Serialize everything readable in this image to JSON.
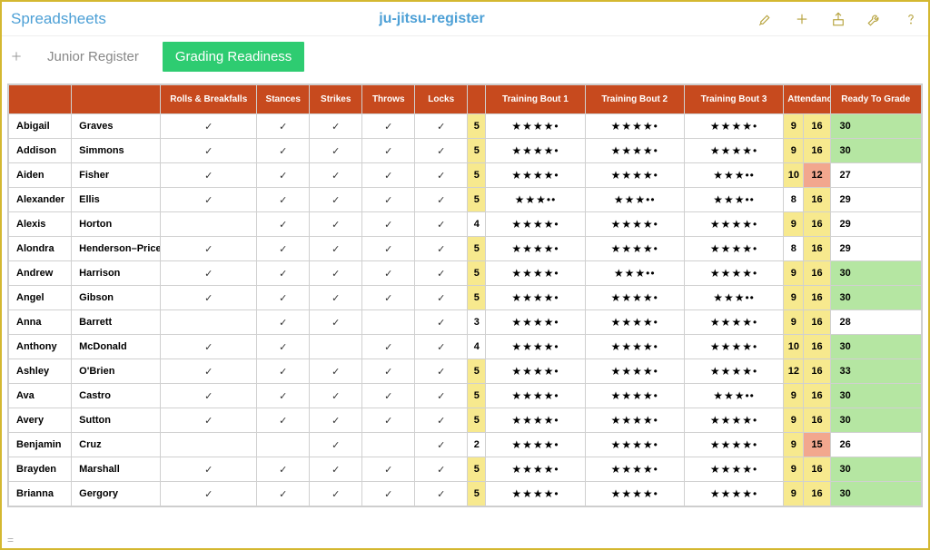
{
  "topbar": {
    "app_title": "Spreadsheets",
    "doc_title": "ju-jitsu-register"
  },
  "tabs": {
    "items": [
      {
        "label": "Junior Register",
        "active": false
      },
      {
        "label": "Grading Readiness",
        "active": true
      }
    ]
  },
  "table": {
    "headers": {
      "name1": "",
      "name2": "",
      "rolls": "Rolls & Breakfalls",
      "stances": "Stances",
      "strikes": "Strikes",
      "throws": "Throws",
      "locks": "Locks",
      "bout1": "Training Bout 1",
      "bout2": "Training Bout 2",
      "bout3": "Training Bout 3",
      "attendance": "Attendance",
      "ready": "Ready To Grade"
    },
    "colors": {
      "header_bg": "#c74a1e",
      "header_fg": "#ffffff",
      "num_bg": "#f7e98e",
      "att_good_bg": "#f7e98e",
      "att_bad_bg": "#f2a78e",
      "grade_good_bg": "#b5e6a2",
      "border": "#d0d0d0"
    },
    "rows": [
      {
        "first": "Abigail",
        "last": "Graves",
        "rolls": true,
        "stances": true,
        "strikes": true,
        "throws": true,
        "locks": true,
        "num": 5,
        "b1": 4,
        "b2": 4,
        "b3": 4,
        "a1": 9,
        "a2": 16,
        "grade": 30,
        "good": true
      },
      {
        "first": "Addison",
        "last": "Simmons",
        "rolls": true,
        "stances": true,
        "strikes": true,
        "throws": true,
        "locks": true,
        "num": 5,
        "b1": 4,
        "b2": 4,
        "b3": 4,
        "a1": 9,
        "a2": 16,
        "grade": 30,
        "good": true
      },
      {
        "first": "Aiden",
        "last": "Fisher",
        "rolls": true,
        "stances": true,
        "strikes": true,
        "throws": true,
        "locks": true,
        "num": 5,
        "b1": 4,
        "b2": 4,
        "b3": 3,
        "a1": 10,
        "a2": 12,
        "a2bad": true,
        "grade": 27,
        "good": false
      },
      {
        "first": "Alexander",
        "last": "Ellis",
        "rolls": true,
        "stances": true,
        "strikes": true,
        "throws": true,
        "locks": true,
        "num": 5,
        "b1": 3,
        "b2": 3,
        "b3": 3,
        "a1": 8,
        "a1dim": true,
        "a2": 16,
        "grade": 29,
        "good": false
      },
      {
        "first": "Alexis",
        "last": "Horton",
        "rolls": false,
        "stances": true,
        "strikes": true,
        "throws": true,
        "locks": true,
        "num": 4,
        "numdim": true,
        "b1": 4,
        "b2": 4,
        "b3": 4,
        "a1": 9,
        "a2": 16,
        "grade": 29,
        "good": false
      },
      {
        "first": "Alondra",
        "last": "Henderson–Price",
        "rolls": true,
        "stances": true,
        "strikes": true,
        "throws": true,
        "locks": true,
        "num": 5,
        "b1": 4,
        "b2": 4,
        "b3": 4,
        "a1": 8,
        "a1dim": true,
        "a2": 16,
        "grade": 29,
        "good": false
      },
      {
        "first": "Andrew",
        "last": "Harrison",
        "rolls": true,
        "stances": true,
        "strikes": true,
        "throws": true,
        "locks": true,
        "num": 5,
        "b1": 4,
        "b2": 3,
        "b3": 4,
        "a1": 9,
        "a2": 16,
        "grade": 30,
        "good": true
      },
      {
        "first": "Angel",
        "last": "Gibson",
        "rolls": true,
        "stances": true,
        "strikes": true,
        "throws": true,
        "locks": true,
        "num": 5,
        "b1": 4,
        "b2": 4,
        "b3": 3,
        "a1": 9,
        "a2": 16,
        "grade": 30,
        "good": true
      },
      {
        "first": "Anna",
        "last": "Barrett",
        "rolls": false,
        "stances": true,
        "strikes": true,
        "throws": false,
        "locks": true,
        "num": 3,
        "numdim": true,
        "b1": 4,
        "b2": 4,
        "b3": 4,
        "a1": 9,
        "a2": 16,
        "grade": 28,
        "good": false
      },
      {
        "first": "Anthony",
        "last": "McDonald",
        "rolls": true,
        "stances": true,
        "strikes": false,
        "throws": true,
        "locks": true,
        "num": 4,
        "numdim": true,
        "b1": 4,
        "b2": 4,
        "b3": 4,
        "a1": 10,
        "a2": 16,
        "grade": 30,
        "good": true
      },
      {
        "first": "Ashley",
        "last": "O'Brien",
        "rolls": true,
        "stances": true,
        "strikes": true,
        "throws": true,
        "locks": true,
        "num": 5,
        "b1": 4,
        "b2": 4,
        "b3": 4,
        "a1": 12,
        "a2": 16,
        "grade": 33,
        "good": true
      },
      {
        "first": "Ava",
        "last": "Castro",
        "rolls": true,
        "stances": true,
        "strikes": true,
        "throws": true,
        "locks": true,
        "num": 5,
        "b1": 4,
        "b2": 4,
        "b3": 3,
        "a1": 9,
        "a2": 16,
        "grade": 30,
        "good": true
      },
      {
        "first": "Avery",
        "last": "Sutton",
        "rolls": true,
        "stances": true,
        "strikes": true,
        "throws": true,
        "locks": true,
        "num": 5,
        "b1": 4,
        "b2": 4,
        "b3": 4,
        "a1": 9,
        "a2": 16,
        "grade": 30,
        "good": true
      },
      {
        "first": "Benjamin",
        "last": "Cruz",
        "rolls": false,
        "stances": false,
        "strikes": true,
        "throws": false,
        "locks": true,
        "num": 2,
        "numdim": true,
        "b1": 4,
        "b2": 4,
        "b3": 4,
        "a1": 9,
        "a2": 15,
        "a2bad": true,
        "grade": 26,
        "good": false
      },
      {
        "first": "Brayden",
        "last": "Marshall",
        "rolls": true,
        "stances": true,
        "strikes": true,
        "throws": true,
        "locks": true,
        "num": 5,
        "b1": 4,
        "b2": 4,
        "b3": 4,
        "a1": 9,
        "a2": 16,
        "grade": 30,
        "good": true
      },
      {
        "first": "Brianna",
        "last": "Gergory",
        "rolls": true,
        "stances": true,
        "strikes": true,
        "throws": true,
        "locks": true,
        "num": 5,
        "b1": 4,
        "b2": 4,
        "b3": 4,
        "a1": 9,
        "a2": 16,
        "grade": 30,
        "good": true
      }
    ]
  }
}
